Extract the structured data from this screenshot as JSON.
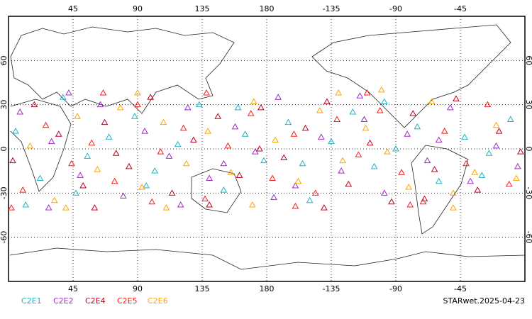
{
  "chart_data": {
    "type": "scatter",
    "xlim": [
      0,
      360
    ],
    "ylim": [
      -90,
      90
    ],
    "xticks": [
      45,
      90,
      135,
      180,
      {
        "value": 225,
        "label": "-135"
      },
      {
        "value": 270,
        "label": "-90"
      },
      {
        "value": 315,
        "label": "-45"
      }
    ],
    "yticks": [
      -60,
      -30,
      0,
      30,
      60
    ],
    "grid": true,
    "series": [
      {
        "name": "C2E1",
        "color": "#1fb4c4",
        "x": [
          5,
          22,
          38,
          55,
          70,
          88,
          102,
          118,
          133,
          150,
          165,
          178,
          195,
          210,
          225,
          240,
          255,
          270,
          285,
          300,
          318,
          335,
          350,
          12,
          47,
          96,
          160,
          205,
          262,
          330
        ],
        "values": [
          12,
          -20,
          35,
          -5,
          8,
          22,
          -15,
          3,
          30,
          -28,
          10,
          -8,
          18,
          -35,
          5,
          25,
          -12,
          0,
          15,
          -22,
          8,
          -3,
          20,
          -38,
          -30,
          -25,
          28,
          -10,
          32,
          -18
        ]
      },
      {
        "name": "C2E2",
        "color": "#a02cc8",
        "x": [
          8,
          30,
          50,
          64,
          80,
          95,
          112,
          125,
          140,
          158,
          172,
          188,
          200,
          218,
          232,
          248,
          262,
          278,
          292,
          308,
          322,
          340,
          355,
          42,
          120,
          185,
          245,
          300,
          28,
          150
        ],
        "values": [
          25,
          5,
          -18,
          30,
          -32,
          12,
          -5,
          28,
          -20,
          15,
          -2,
          35,
          -25,
          8,
          -15,
          20,
          -30,
          10,
          -8,
          28,
          -22,
          2,
          -12,
          38,
          -38,
          -33,
          36,
          6,
          -40,
          -10
        ]
      },
      {
        "name": "C2E4",
        "color": "#c00020",
        "x": [
          3,
          18,
          35,
          52,
          67,
          84,
          99,
          114,
          129,
          146,
          161,
          176,
          192,
          207,
          222,
          237,
          252,
          267,
          282,
          297,
          312,
          327,
          342,
          357,
          60,
          140,
          220,
          290,
          75,
          175
        ],
        "values": [
          -8,
          30,
          10,
          -25,
          18,
          -12,
          35,
          -30,
          6,
          22,
          -18,
          28,
          -6,
          14,
          32,
          -24,
          4,
          -36,
          24,
          -14,
          34,
          -28,
          12,
          -2,
          -40,
          -38,
          -40,
          -34,
          -3,
          0
        ]
      },
      {
        "name": "C2E5",
        "color": "#ff1a1a",
        "x": [
          10,
          26,
          44,
          58,
          74,
          90,
          106,
          122,
          137,
          153,
          169,
          184,
          199,
          214,
          229,
          244,
          259,
          274,
          289,
          304,
          319,
          334,
          349,
          2,
          100,
          200,
          280,
          250,
          138,
          66
        ],
        "values": [
          -28,
          16,
          -10,
          4,
          -22,
          30,
          -2,
          14,
          -34,
          2,
          24,
          -20,
          10,
          -30,
          20,
          -4,
          26,
          -16,
          -36,
          12,
          -10,
          30,
          -24,
          -40,
          -36,
          -39,
          -38,
          38,
          38,
          38
        ]
      },
      {
        "name": "C2E6",
        "color": "#ffa500",
        "x": [
          15,
          32,
          48,
          62,
          78,
          93,
          108,
          124,
          139,
          155,
          171,
          186,
          202,
          217,
          233,
          249,
          264,
          279,
          295,
          310,
          325,
          340,
          354,
          40,
          110,
          170,
          230,
          310,
          90,
          260
        ],
        "values": [
          2,
          -35,
          22,
          -14,
          28,
          -26,
          18,
          -10,
          12,
          -16,
          32,
          6,
          -22,
          26,
          -8,
          14,
          -2,
          -26,
          32,
          -30,
          -16,
          16,
          -20,
          -40,
          -40,
          -38,
          38,
          -40,
          38,
          40
        ]
      }
    ],
    "footer": "STARwet.2025-04-23"
  }
}
